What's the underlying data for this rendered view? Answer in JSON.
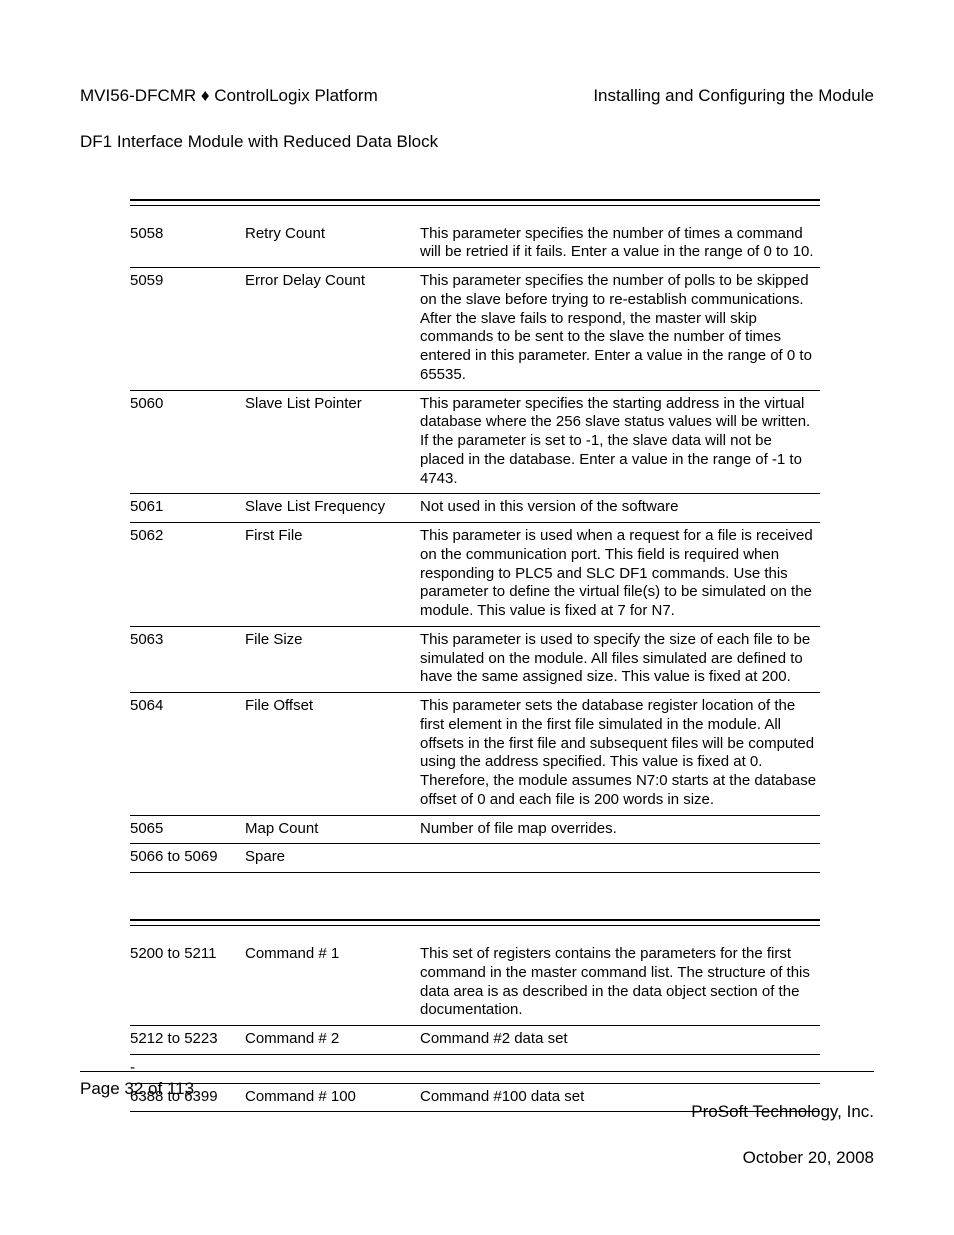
{
  "header": {
    "left_line1": "MVI56-DFCMR ♦ ControlLogix Platform",
    "left_line2": "DF1 Interface Module with Reduced Data Block",
    "right_line1": "Installing and Configuring the Module"
  },
  "table1": {
    "rows": [
      {
        "addr": "5058",
        "name": "Retry Count",
        "desc": "This parameter specifies the number of times a command will be retried if it fails. Enter a value in the range of 0 to 10."
      },
      {
        "addr": "5059",
        "name": "Error Delay Count",
        "desc": "This parameter specifies the number of polls to be skipped on the slave before trying to re-establish communications. After the slave fails to respond, the master will skip commands to be sent to the slave the number of times entered in this parameter. Enter a value in the range of 0 to 65535."
      },
      {
        "addr": "5060",
        "name": "Slave List Pointer",
        "desc": "This parameter specifies the starting address in the virtual database where the 256 slave status values will be written. If the parameter is set to -1, the slave data will not be placed in the database. Enter a value in the range of -1 to 4743."
      },
      {
        "addr": "5061",
        "name": "Slave List Frequency",
        "desc": "Not used in this version of the software"
      },
      {
        "addr": "5062",
        "name": "First File",
        "desc": "This parameter is used when a request for a file is received on the communication port. This field is required when responding to PLC5 and SLC DF1 commands. Use this parameter to define the virtual file(s) to be simulated on the module. This value is fixed at 7 for N7."
      },
      {
        "addr": "5063",
        "name": "File Size",
        "desc": "This parameter is used to specify the size of each file to be simulated on the module. All files simulated are defined to have the same assigned size. This value is fixed at 200."
      },
      {
        "addr": "5064",
        "name": "File Offset",
        "desc": "This parameter sets the database register location of the first element in the first file simulated in the module. All offsets in the first file and subsequent files will be computed using the address specified. This value is fixed at 0. Therefore, the module assumes N7:0 starts at the database offset of 0 and each file is 200 words in size."
      },
      {
        "addr": "5065",
        "name": "Map Count",
        "desc": "Number of file map overrides."
      },
      {
        "addr": "5066 to 5069",
        "name": "Spare",
        "desc": ""
      }
    ]
  },
  "table2": {
    "rows": [
      {
        "addr": "5200 to 5211",
        "name": "Command # 1",
        "desc": "This set of registers contains the parameters for the first command in the master command list. The structure of this data area is as described in the data object section of the documentation."
      },
      {
        "addr": "5212 to 5223",
        "name": "Command # 2",
        "desc": "Command #2 data set"
      },
      {
        "addr": "-",
        "name": "",
        "desc": ""
      },
      {
        "addr": "6388 to 6399",
        "name": "Command # 100",
        "desc": "Command #100 data set"
      }
    ]
  },
  "footer": {
    "left": "Page 32 of 113",
    "right_line1": "ProSoft Technology, Inc.",
    "right_line2": "October 20, 2008"
  }
}
